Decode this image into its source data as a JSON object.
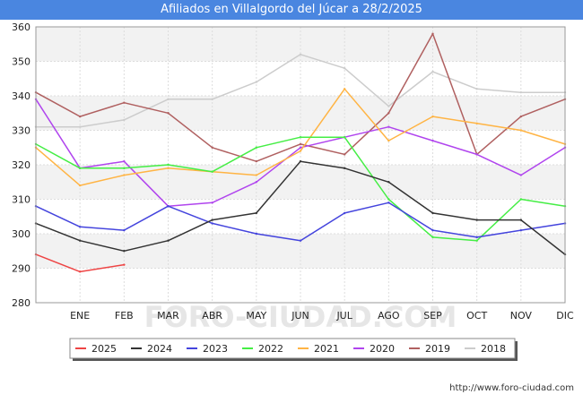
{
  "header": {
    "title": "Afiliados en Villalgordo del Júcar a 28/2/2025"
  },
  "watermark": "FORO-CIUDAD.COM",
  "footer": {
    "url": "http://www.foro-ciudad.com"
  },
  "chart_data": {
    "type": "line",
    "title": "Afiliados en Villalgordo del Júcar a 28/2/2025",
    "xlabel": "",
    "ylabel": "",
    "categories": [
      "",
      "ENE",
      "FEB",
      "MAR",
      "ABR",
      "MAY",
      "JUN",
      "JUL",
      "AGO",
      "SEP",
      "OCT",
      "NOV",
      "DIC"
    ],
    "ylim": [
      280,
      360
    ],
    "yticks": [
      280,
      290,
      300,
      310,
      320,
      330,
      340,
      350,
      360
    ],
    "grid": true,
    "legend_position": "bottom",
    "series": [
      {
        "name": "2025",
        "color": "#ee4444",
        "values": [
          294,
          289,
          291,
          null,
          null,
          null,
          null,
          null,
          null,
          null,
          null,
          null,
          null
        ]
      },
      {
        "name": "2024",
        "color": "#333333",
        "values": [
          303,
          298,
          295,
          298,
          304,
          306,
          321,
          319,
          315,
          306,
          304,
          304,
          294
        ]
      },
      {
        "name": "2023",
        "color": "#4444dd",
        "values": [
          308,
          302,
          301,
          308,
          303,
          300,
          298,
          306,
          309,
          301,
          299,
          301,
          303
        ]
      },
      {
        "name": "2022",
        "color": "#44ee44",
        "values": [
          326,
          319,
          319,
          320,
          318,
          325,
          328,
          328,
          310,
          299,
          298,
          310,
          308
        ]
      },
      {
        "name": "2021",
        "color": "#ffb444",
        "values": [
          325,
          314,
          317,
          319,
          318,
          317,
          324,
          342,
          327,
          334,
          332,
          330,
          326
        ]
      },
      {
        "name": "2020",
        "color": "#b044ee",
        "values": [
          339,
          319,
          321,
          308,
          309,
          315,
          325,
          328,
          331,
          327,
          323,
          317,
          325
        ]
      },
      {
        "name": "2019",
        "color": "#b06060",
        "values": [
          341,
          334,
          338,
          335,
          325,
          321,
          326,
          323,
          335,
          358,
          323,
          334,
          339
        ]
      },
      {
        "name": "2018",
        "color": "#cccccc",
        "values": [
          331,
          331,
          333,
          339,
          339,
          344,
          352,
          348,
          337,
          347,
          342,
          341,
          341
        ]
      }
    ]
  }
}
